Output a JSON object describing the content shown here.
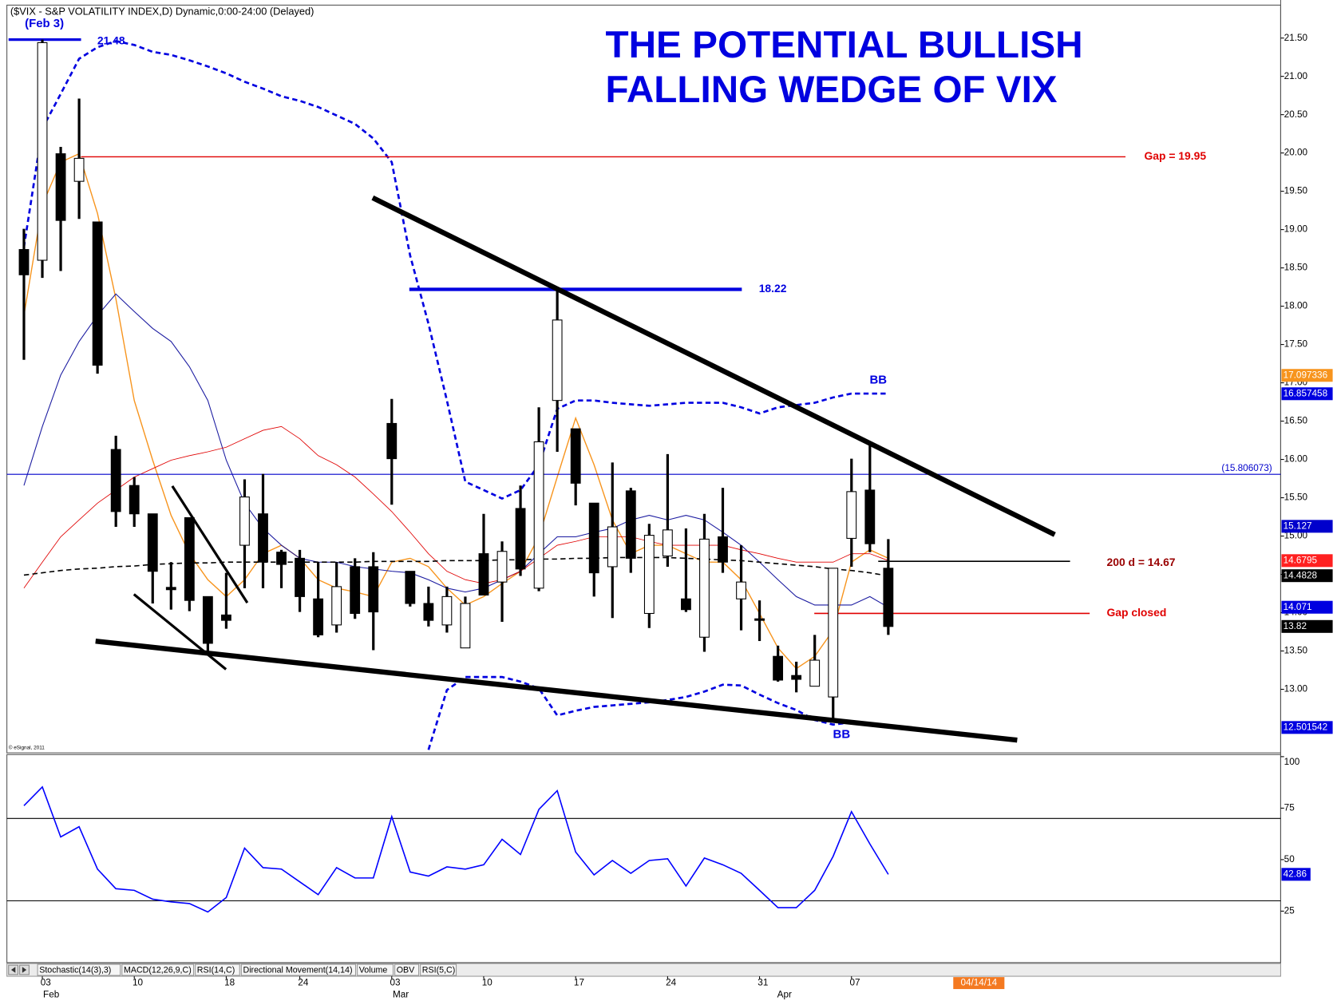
{
  "header": "($VIX - S&P VOLATILITY INDEX,D) Dynamic,0:00-24:00 (Delayed)",
  "copyright": "© eSignal, 2011",
  "tabs": [
    "Stochastic(14(3),3)",
    "MACD(12,26,9,C)",
    "RSI(14,C)",
    "Directional Movement(14,14)",
    "Volume",
    "OBV",
    "RSI(5,C)"
  ],
  "future_date": "04/14/14",
  "chart_data": [
    {
      "type": "candlestick",
      "title_lines": [
        "THE POTENTIAL BULLISH",
        "FALLING WEDGE OF VIX"
      ],
      "categories": [
        null,
        "03",
        null,
        null,
        null,
        null,
        "10",
        null,
        null,
        null,
        null,
        "18",
        null,
        null,
        null,
        "24",
        null,
        null,
        null,
        null,
        "03",
        null,
        null,
        null,
        null,
        "10",
        null,
        null,
        null,
        null,
        "17",
        null,
        null,
        null,
        null,
        "24",
        null,
        null,
        null,
        null,
        "31",
        null,
        null,
        null,
        null,
        "07",
        null,
        null
      ],
      "months": [
        "Feb",
        "Mar",
        "Apr"
      ],
      "open": [
        18.74,
        18.6,
        19.99,
        19.63,
        19.1,
        16.13,
        15.66,
        15.29,
        14.33,
        15.24,
        14.21,
        13.97,
        14.88,
        15.29,
        14.79,
        14.71,
        14.18,
        13.84,
        14.6,
        14.6,
        16.47,
        14.54,
        14.12,
        13.84,
        13.54,
        14.77,
        14.4,
        15.36,
        14.32,
        16.77,
        16.4,
        15.43,
        14.6,
        15.59,
        13.99,
        14.74,
        14.18,
        13.68,
        14.99,
        14.18,
        13.92,
        13.43,
        13.18,
        13.04,
        12.9,
        14.97,
        15.6,
        14.58
      ],
      "high": [
        19.01,
        21.48,
        20.08,
        20.71,
        19.1,
        16.31,
        15.77,
        15.29,
        14.66,
        15.24,
        14.21,
        14.52,
        15.74,
        15.81,
        14.82,
        14.82,
        14.66,
        14.66,
        14.71,
        14.79,
        16.79,
        14.54,
        14.34,
        14.34,
        14.21,
        15.29,
        14.93,
        15.66,
        16.68,
        18.23,
        16.4,
        15.43,
        15.96,
        15.63,
        15.16,
        16.07,
        15.1,
        15.29,
        15.63,
        14.88,
        14.16,
        13.57,
        13.36,
        13.71,
        14.58,
        16.01,
        16.21,
        14.96
      ],
      "low": [
        17.3,
        18.37,
        18.46,
        19.14,
        17.12,
        15.12,
        15.12,
        14.12,
        14.04,
        14.02,
        13.46,
        13.79,
        14.32,
        14.32,
        14.32,
        14.01,
        13.68,
        13.74,
        13.92,
        13.51,
        15.41,
        14.08,
        13.82,
        13.74,
        13.54,
        14.23,
        13.88,
        14.48,
        14.28,
        16.1,
        15.4,
        14.21,
        13.93,
        14.52,
        13.8,
        14.6,
        14.01,
        13.49,
        14.52,
        13.77,
        13.63,
        13.1,
        12.96,
        13.04,
        12.6,
        14.6,
        14.79,
        13.71
      ],
      "close": [
        18.41,
        21.44,
        19.12,
        19.93,
        17.23,
        15.32,
        15.29,
        14.54,
        14.3,
        14.16,
        13.6,
        13.9,
        15.51,
        14.66,
        14.63,
        14.21,
        13.71,
        14.34,
        13.99,
        14.01,
        16.01,
        14.12,
        13.9,
        14.21,
        14.12,
        14.23,
        14.8,
        14.57,
        16.23,
        17.82,
        15.69,
        14.52,
        15.12,
        14.71,
        15.01,
        15.08,
        14.04,
        14.96,
        14.66,
        14.4,
        13.9,
        13.12,
        13.13,
        13.38,
        14.58,
        15.58,
        14.9,
        13.82
      ],
      "up_color": "#ffffff",
      "down_color": "#000000",
      "ylim": [
        12.17,
        21.93
      ],
      "yticks": [
        {
          "value": 13,
          "label": "13.00"
        },
        {
          "value": 13.5,
          "label": "13.50"
        },
        {
          "value": 14,
          "label": "14.00"
        },
        {
          "value": 14.5,
          "label": "14.50"
        },
        {
          "value": 15,
          "label": "15.00"
        },
        {
          "value": 15.5,
          "label": "15.50"
        },
        {
          "value": 16,
          "label": "16.00"
        },
        {
          "value": 16.5,
          "label": "16.50"
        },
        {
          "value": 17,
          "label": "17.00"
        },
        {
          "value": 17.5,
          "label": "17.50"
        },
        {
          "value": 18,
          "label": "18.00"
        },
        {
          "value": 18.5,
          "label": "18.50"
        },
        {
          "value": 19,
          "label": "19.00"
        },
        {
          "value": 19.5,
          "label": "19.50"
        },
        {
          "value": 20,
          "label": "20.00"
        },
        {
          "value": 20.5,
          "label": "20.50"
        },
        {
          "value": 21,
          "label": "21.00"
        },
        {
          "value": 21.5,
          "label": "21.50"
        }
      ],
      "overlays": [
        {
          "color": "#0000e0",
          "style": "dashed",
          "width": 2.5,
          "values": [
            18.77,
            20.32,
            20.77,
            21.23,
            21.38,
            21.46,
            21.41,
            21.32,
            21.28,
            21.21,
            21.13,
            21.04,
            20.93,
            20.84,
            20.74,
            20.68,
            20.6,
            20.49,
            20.38,
            20.19,
            19.88,
            18.66,
            17.77,
            16.77,
            15.71,
            15.6,
            15.49,
            15.6,
            15.93,
            16.66,
            16.77,
            16.77,
            16.74,
            16.72,
            16.7,
            16.72,
            16.74,
            16.74,
            16.74,
            16.68,
            16.6,
            16.68,
            16.71,
            16.74,
            16.81,
            16.86,
            16.86,
            16.86
          ]
        },
        {
          "color": "#0000e0",
          "style": "dashed",
          "width": 2.5,
          "values": [
            null,
            null,
            null,
            null,
            null,
            null,
            null,
            null,
            null,
            null,
            null,
            null,
            null,
            null,
            null,
            null,
            null,
            null,
            null,
            null,
            null,
            null,
            12.21,
            12.99,
            13.16,
            13.16,
            13.16,
            13.1,
            13.01,
            12.66,
            12.72,
            12.77,
            12.79,
            12.81,
            12.83,
            12.86,
            12.9,
            12.97,
            13.06,
            13.05,
            12.93,
            12.82,
            12.73,
            12.6,
            12.54,
            12.57,
            12.54,
            12.5
          ]
        },
        {
          "color": "#f7941d",
          "style": "solid",
          "width": 1.3,
          "values": [
            17.88,
            19.32,
            19.88,
            19.99,
            19.21,
            18.1,
            16.77,
            15.99,
            15.27,
            14.77,
            14.43,
            14.21,
            14.43,
            14.77,
            14.88,
            14.71,
            14.43,
            14.32,
            14.27,
            14.21,
            14.66,
            14.71,
            14.6,
            14.32,
            14.1,
            14.21,
            14.38,
            14.54,
            14.99,
            15.77,
            16.54,
            15.93,
            15.21,
            14.77,
            14.88,
            14.88,
            14.77,
            14.66,
            14.66,
            14.43,
            13.99,
            13.54,
            13.27,
            13.43,
            13.77,
            14.66,
            14.82,
            14.71
          ]
        },
        {
          "color": "#1a1aa0",
          "style": "solid",
          "width": 1,
          "values": [
            15.66,
            16.43,
            17.1,
            17.54,
            17.88,
            18.16,
            17.93,
            17.71,
            17.54,
            17.21,
            16.77,
            15.99,
            15.43,
            15.1,
            14.88,
            14.71,
            14.66,
            14.66,
            14.6,
            14.57,
            14.54,
            14.52,
            14.43,
            14.32,
            14.27,
            14.32,
            14.43,
            14.54,
            14.77,
            14.99,
            14.99,
            15.05,
            15.1,
            15.21,
            15.27,
            15.21,
            15.27,
            15.21,
            15.05,
            14.88,
            14.66,
            14.43,
            14.21,
            14.1,
            14.1,
            14.1,
            14.21,
            14.07
          ]
        },
        {
          "color": "#e00000",
          "style": "solid",
          "width": 0.8,
          "values": [
            14.32,
            14.66,
            14.99,
            15.21,
            15.43,
            15.6,
            15.77,
            15.88,
            15.99,
            16.05,
            16.1,
            16.16,
            16.27,
            16.38,
            16.43,
            16.27,
            16.05,
            15.93,
            15.77,
            15.55,
            15.32,
            15.05,
            14.77,
            14.54,
            14.43,
            14.38,
            14.43,
            14.54,
            14.71,
            14.88,
            14.93,
            14.99,
            14.99,
            14.99,
            14.93,
            14.88,
            14.88,
            14.88,
            14.88,
            14.82,
            14.77,
            14.71,
            14.66,
            14.66,
            14.66,
            14.77,
            14.77,
            14.68
          ]
        },
        {
          "color": "#000000",
          "style": "dashed",
          "width": 1.5,
          "values": [
            14.49,
            14.52,
            14.55,
            14.57,
            14.58,
            14.6,
            14.61,
            14.63,
            14.64,
            14.65,
            14.65,
            14.66,
            14.66,
            14.66,
            14.66,
            14.66,
            14.66,
            14.66,
            14.66,
            14.67,
            14.67,
            14.67,
            14.67,
            14.68,
            14.68,
            14.68,
            14.69,
            14.69,
            14.7,
            14.7,
            14.71,
            14.71,
            14.72,
            14.72,
            14.72,
            14.72,
            14.71,
            14.7,
            14.69,
            14.68,
            14.66,
            14.64,
            14.62,
            14.6,
            14.57,
            14.55,
            14.52,
            14.48
          ]
        }
      ],
      "levels": [
        {
          "value": 19.95,
          "label": "Gap = 19.95",
          "color": "#e00000",
          "label_color": "#e00000"
        },
        {
          "value": 18.22,
          "label": "18.22",
          "color": "#0000e0",
          "label_color": "#0000e0"
        },
        {
          "value": 14.67,
          "label": "200 d = 14.67",
          "color": "#000000",
          "label_color": "#990000"
        },
        {
          "value": 13.99,
          "label": "Gap closed",
          "color": "#e00000",
          "label_color": "#e00000"
        },
        {
          "value": 15.806073,
          "label": "(15.806073)",
          "color": "#0000cc",
          "label_color": "#0000cc"
        },
        {
          "value": 21.48,
          "label": "21.48",
          "color": "#0000e0",
          "label_color": "#0000e0"
        }
      ],
      "value_markers": [
        {
          "value": 17.097336,
          "color": "#f7941d"
        },
        {
          "value": 16.857458,
          "color": "#0000e0"
        },
        {
          "value": 15.127,
          "color": "#0000cc"
        },
        {
          "value": 14.6795,
          "color": "#ff2020"
        },
        {
          "value": 14.4828,
          "color": "#000000"
        },
        {
          "value": 14.071,
          "color": "#0000e0"
        },
        {
          "value": 13.82,
          "color": "#000000"
        },
        {
          "value": 12.501542,
          "color": "#0000e0"
        }
      ],
      "annotations": [
        "(Feb 3)",
        "BB",
        "BB"
      ]
    },
    {
      "type": "line",
      "values": [
        76.2,
        85.3,
        61.0,
        66.0,
        45.4,
        35.9,
        35.1,
        30.8,
        29.5,
        28.7,
        24.6,
        31.6,
        55.6,
        46.1,
        45.4,
        39.2,
        33.0,
        46.1,
        41.1,
        41.1,
        70.9,
        44.0,
        42.0,
        46.5,
        45.4,
        47.5,
        59.9,
        52.5,
        74.4,
        83.5,
        53.7,
        42.6,
        49.6,
        43.4,
        49.6,
        50.4,
        37.2,
        50.8,
        47.5,
        43.4,
        35.1,
        26.7,
        26.7,
        35.1,
        51.6,
        73.3,
        57.6,
        42.86
      ],
      "color": "#0000ff",
      "ylim": [
        0,
        101
      ],
      "yticks": [
        25,
        50,
        75,
        100
      ],
      "reference_lines": [
        30,
        70
      ],
      "value_marker": {
        "value": 42.86,
        "color": "#0000e0"
      }
    }
  ]
}
